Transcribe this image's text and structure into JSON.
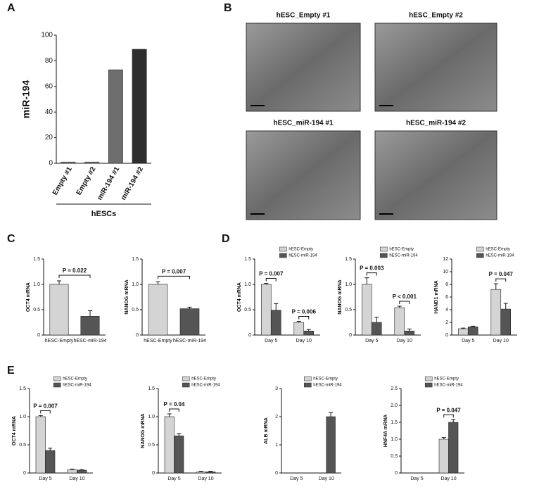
{
  "panel_labels": [
    "A",
    "B",
    "C",
    "D",
    "E"
  ],
  "images": [
    {
      "title": "hESC_Empty #1"
    },
    {
      "title": "hESC_Empty #2"
    },
    {
      "title": "hESC_miR-194 #1"
    },
    {
      "title": "hESC_miR-194 #2"
    }
  ],
  "chart_data": [
    {
      "type": "bar",
      "y_label": "miR-194",
      "categories": [
        "Empty #1",
        "Empty #2",
        "miR-194 #1",
        "miR-194 #2"
      ],
      "values": [
        1,
        1,
        73,
        89
      ],
      "colors": [
        "#808080",
        "#808080",
        "#6e6e6e",
        "#2e2e2e"
      ],
      "ylim": [
        0,
        100
      ],
      "yticks": [
        0,
        20,
        40,
        60,
        80,
        100
      ],
      "group_label": "hESCs"
    },
    {
      "type": "bar",
      "y_label": "OCT4 mRNA",
      "categories": [
        "hESC-Empty",
        "hESC-miR-194"
      ],
      "values": [
        1.0,
        0.37
      ],
      "errors": [
        0.07,
        0.11
      ],
      "colors": [
        "#d4d4d4",
        "#555555"
      ],
      "ylim": [
        0,
        1.5
      ],
      "yticks": [
        0,
        0.5,
        {
          "value": 1,
          "label": "1.0"
        },
        1.5
      ],
      "annotation": "P = 0.022"
    },
    {
      "type": "bar",
      "y_label": "NANOG mRNA",
      "categories": [
        "hESC-Empty",
        "hESC-miR-194"
      ],
      "values": [
        1.0,
        0.52
      ],
      "errors": [
        0.05,
        0.03
      ],
      "colors": [
        "#d4d4d4",
        "#555555"
      ],
      "ylim": [
        0,
        1.5
      ],
      "yticks": [
        0,
        0.5,
        {
          "value": 1,
          "label": "1.0"
        },
        1.5
      ],
      "annotation": "P = 0.007"
    },
    {
      "type": "grouped_bar",
      "y_label": "OCT4 mRNA",
      "categories": [
        "Day 5",
        "Day 10"
      ],
      "series": [
        {
          "name": "hESC-Empty",
          "color": "#d4d4d4",
          "values": [
            1.0,
            0.25
          ],
          "errors": [
            0.02,
            0.02
          ]
        },
        {
          "name": "hESC-miR-194",
          "color": "#555555",
          "values": [
            0.49,
            0.08
          ],
          "errors": [
            0.13,
            0.03
          ]
        }
      ],
      "ylim": [
        0,
        1.5
      ],
      "yticks": [
        0,
        0.5,
        {
          "value": 1,
          "label": "1.0"
        },
        1.5
      ],
      "annotations": [
        "P = 0.007",
        "P = 0.006"
      ],
      "legend": "top-right"
    },
    {
      "type": "grouped_bar",
      "y_label": "NANOG mRNA",
      "categories": [
        "Day 5",
        "Day 10"
      ],
      "series": [
        {
          "name": "hESC-Empty",
          "color": "#d4d4d4",
          "values": [
            1.0,
            0.54
          ],
          "errors": [
            0.13,
            0.03
          ]
        },
        {
          "name": "hESC-miR-194",
          "color": "#555555",
          "values": [
            0.25,
            0.08
          ],
          "errors": [
            0.1,
            0.04
          ]
        }
      ],
      "ylim": [
        0,
        1.5
      ],
      "yticks": [
        0,
        0.5,
        {
          "value": 1,
          "label": "1.0"
        },
        1.5
      ],
      "annotations": [
        "P = 0.003",
        "P < 0.001"
      ],
      "legend": "top-right"
    },
    {
      "type": "grouped_bar",
      "y_label": "HAND1 mRNA",
      "categories": [
        "Day 5",
        "Day 10"
      ],
      "series": [
        {
          "name": "hESC-Empty",
          "color": "#d4d4d4",
          "values": [
            1.0,
            7.2
          ],
          "errors": [
            0.1,
            0.9
          ]
        },
        {
          "name": "hESC-miR-194",
          "color": "#555555",
          "values": [
            1.3,
            4.1
          ],
          "errors": [
            0.1,
            0.9
          ]
        }
      ],
      "ylim": [
        0,
        12
      ],
      "yticks": [
        0,
        2,
        4,
        6,
        8,
        10,
        12
      ],
      "annotations": [
        null,
        "P = 0.047"
      ],
      "legend": "top-right"
    },
    {
      "type": "grouped_bar",
      "y_label": "OCT4 mRNA",
      "categories": [
        "Day 5",
        "Day 10"
      ],
      "series": [
        {
          "name": "hESC-Empty",
          "color": "#d4d4d4",
          "values": [
            1.0,
            0.06
          ],
          "errors": [
            0.02,
            0.01
          ]
        },
        {
          "name": "hESC-miR-194",
          "color": "#555555",
          "values": [
            0.4,
            0.05
          ],
          "errors": [
            0.04,
            0.01
          ]
        }
      ],
      "ylim": [
        0,
        1.5
      ],
      "yticks": [
        0,
        0.5,
        {
          "value": 1,
          "label": "1.0"
        },
        1.5
      ],
      "annotations": [
        "P = 0.007",
        null
      ],
      "legend": "top-right"
    },
    {
      "type": "grouped_bar",
      "y_label": "NANOG mRNA",
      "categories": [
        "Day 5",
        "Day 10"
      ],
      "series": [
        {
          "name": "hESC-Empty",
          "color": "#d4d4d4",
          "values": [
            1.0,
            0.02
          ],
          "errors": [
            0.05,
            0.01
          ]
        },
        {
          "name": "hESC-miR-194",
          "color": "#555555",
          "values": [
            0.66,
            0.02
          ],
          "errors": [
            0.04,
            0.01
          ]
        }
      ],
      "ylim": [
        0,
        1.5
      ],
      "yticks": [
        0,
        0.5,
        {
          "value": 1,
          "label": "1.0"
        },
        1.5
      ],
      "annotations": [
        "P = 0.04",
        null
      ],
      "legend": "top-right"
    },
    {
      "type": "grouped_bar",
      "y_label": "ALB mRNA",
      "categories": [
        "Day 5",
        "Day 10"
      ],
      "series": [
        {
          "name": "hESC-Empty",
          "color": "#d4d4d4",
          "values": [
            0,
            0
          ],
          "errors": [
            0,
            0
          ]
        },
        {
          "name": "hESC-miR-194",
          "color": "#555555",
          "values": [
            0,
            2.0
          ],
          "errors": [
            0,
            0.15
          ]
        }
      ],
      "ylim": [
        0,
        3
      ],
      "yticks": [
        0,
        1,
        2,
        3
      ],
      "annotations": [
        null,
        null
      ],
      "legend": "top-right"
    },
    {
      "type": "grouped_bar",
      "y_label": "HNF4A mRNA",
      "categories": [
        "Day 5",
        "Day 10"
      ],
      "series": [
        {
          "name": "hESC-Empty",
          "color": "#d4d4d4",
          "values": [
            0,
            1.0
          ],
          "errors": [
            0,
            0.05
          ]
        },
        {
          "name": "hESC-miR-194",
          "color": "#555555",
          "values": [
            0,
            1.5
          ],
          "errors": [
            0,
            0.08
          ]
        }
      ],
      "ylim": [
        0,
        2.5
      ],
      "yticks": [
        0,
        0.5,
        {
          "value": 1,
          "label": "1.0"
        },
        1.5,
        {
          "value": 2,
          "label": "2.0"
        },
        2.5
      ],
      "annotations": [
        null,
        "P = 0.047"
      ],
      "legend": "top-right"
    }
  ]
}
